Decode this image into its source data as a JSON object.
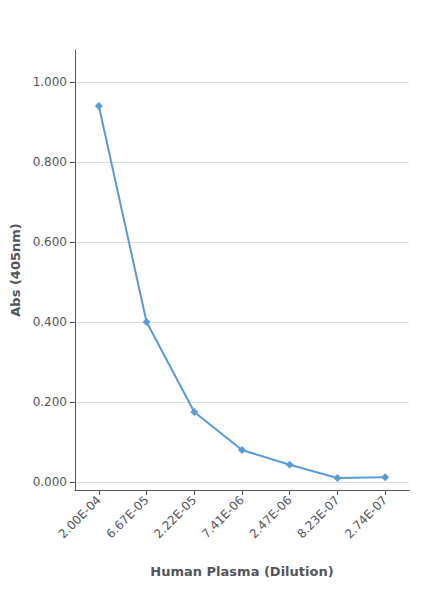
{
  "chart_data": {
    "type": "line",
    "xlabel": "Human Plasma (Dilution)",
    "ylabel": "Abs (405nm)",
    "categories": [
      "2.00E-04",
      "6.67E-05",
      "2.22E-05",
      "7.41E-06",
      "2.47E-06",
      "8.23E-07",
      "2.74E-07"
    ],
    "values": [
      0.94,
      0.4,
      0.175,
      0.08,
      0.043,
      0.01,
      0.012
    ],
    "color": "#5B9BD5",
    "marker": "diamond",
    "ylim": [
      -0.02,
      1.08
    ],
    "yticks": [
      {
        "value": 0.0,
        "label": "0.000"
      },
      {
        "value": 0.2,
        "label": "0.200"
      },
      {
        "value": 0.4,
        "label": "0.400"
      },
      {
        "value": 0.6,
        "label": "0.600"
      },
      {
        "value": 0.8,
        "label": "0.800"
      },
      {
        "value": 1.0,
        "label": "1.000"
      }
    ],
    "grid": true
  }
}
